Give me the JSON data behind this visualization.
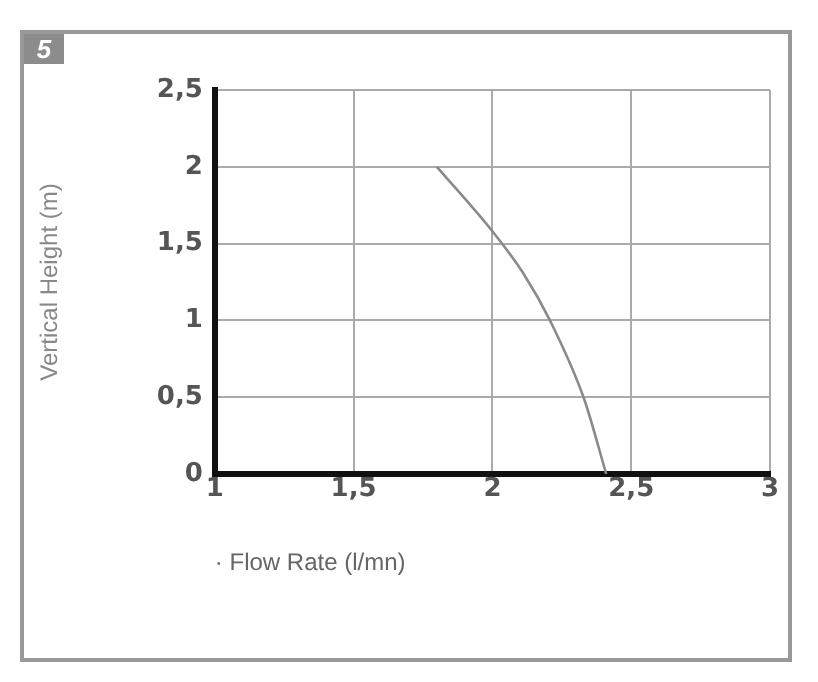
{
  "chart_data": {
    "type": "line",
    "xlabel": "· Flow Rate (l/mn)",
    "ylabel": "Vertical Height (m)",
    "annotations": [
      "5"
    ],
    "series": [
      {
        "color": "#8a8a8a",
        "x": [
          1.8,
          2.0,
          2.11,
          2.21,
          2.33,
          2.41
        ],
        "values": [
          2,
          1.58,
          1.31,
          0.99,
          0.49,
          0
        ]
      }
    ],
    "xlim": [
      1,
      3
    ],
    "xticks": [
      1,
      {
        "value": 1.5,
        "label": "1,5"
      },
      2,
      {
        "value": 2.5,
        "label": "2,5"
      },
      3
    ],
    "ylim": [
      0,
      2.5
    ],
    "yticks": [
      0,
      {
        "value": 0.5,
        "label": "0,5"
      },
      1,
      {
        "value": 1.5,
        "label": "1,5"
      },
      2,
      {
        "value": 2.5,
        "label": "2,5"
      }
    ],
    "grid": true,
    "legend": false,
    "marker": "none",
    "line_style": "solid"
  }
}
